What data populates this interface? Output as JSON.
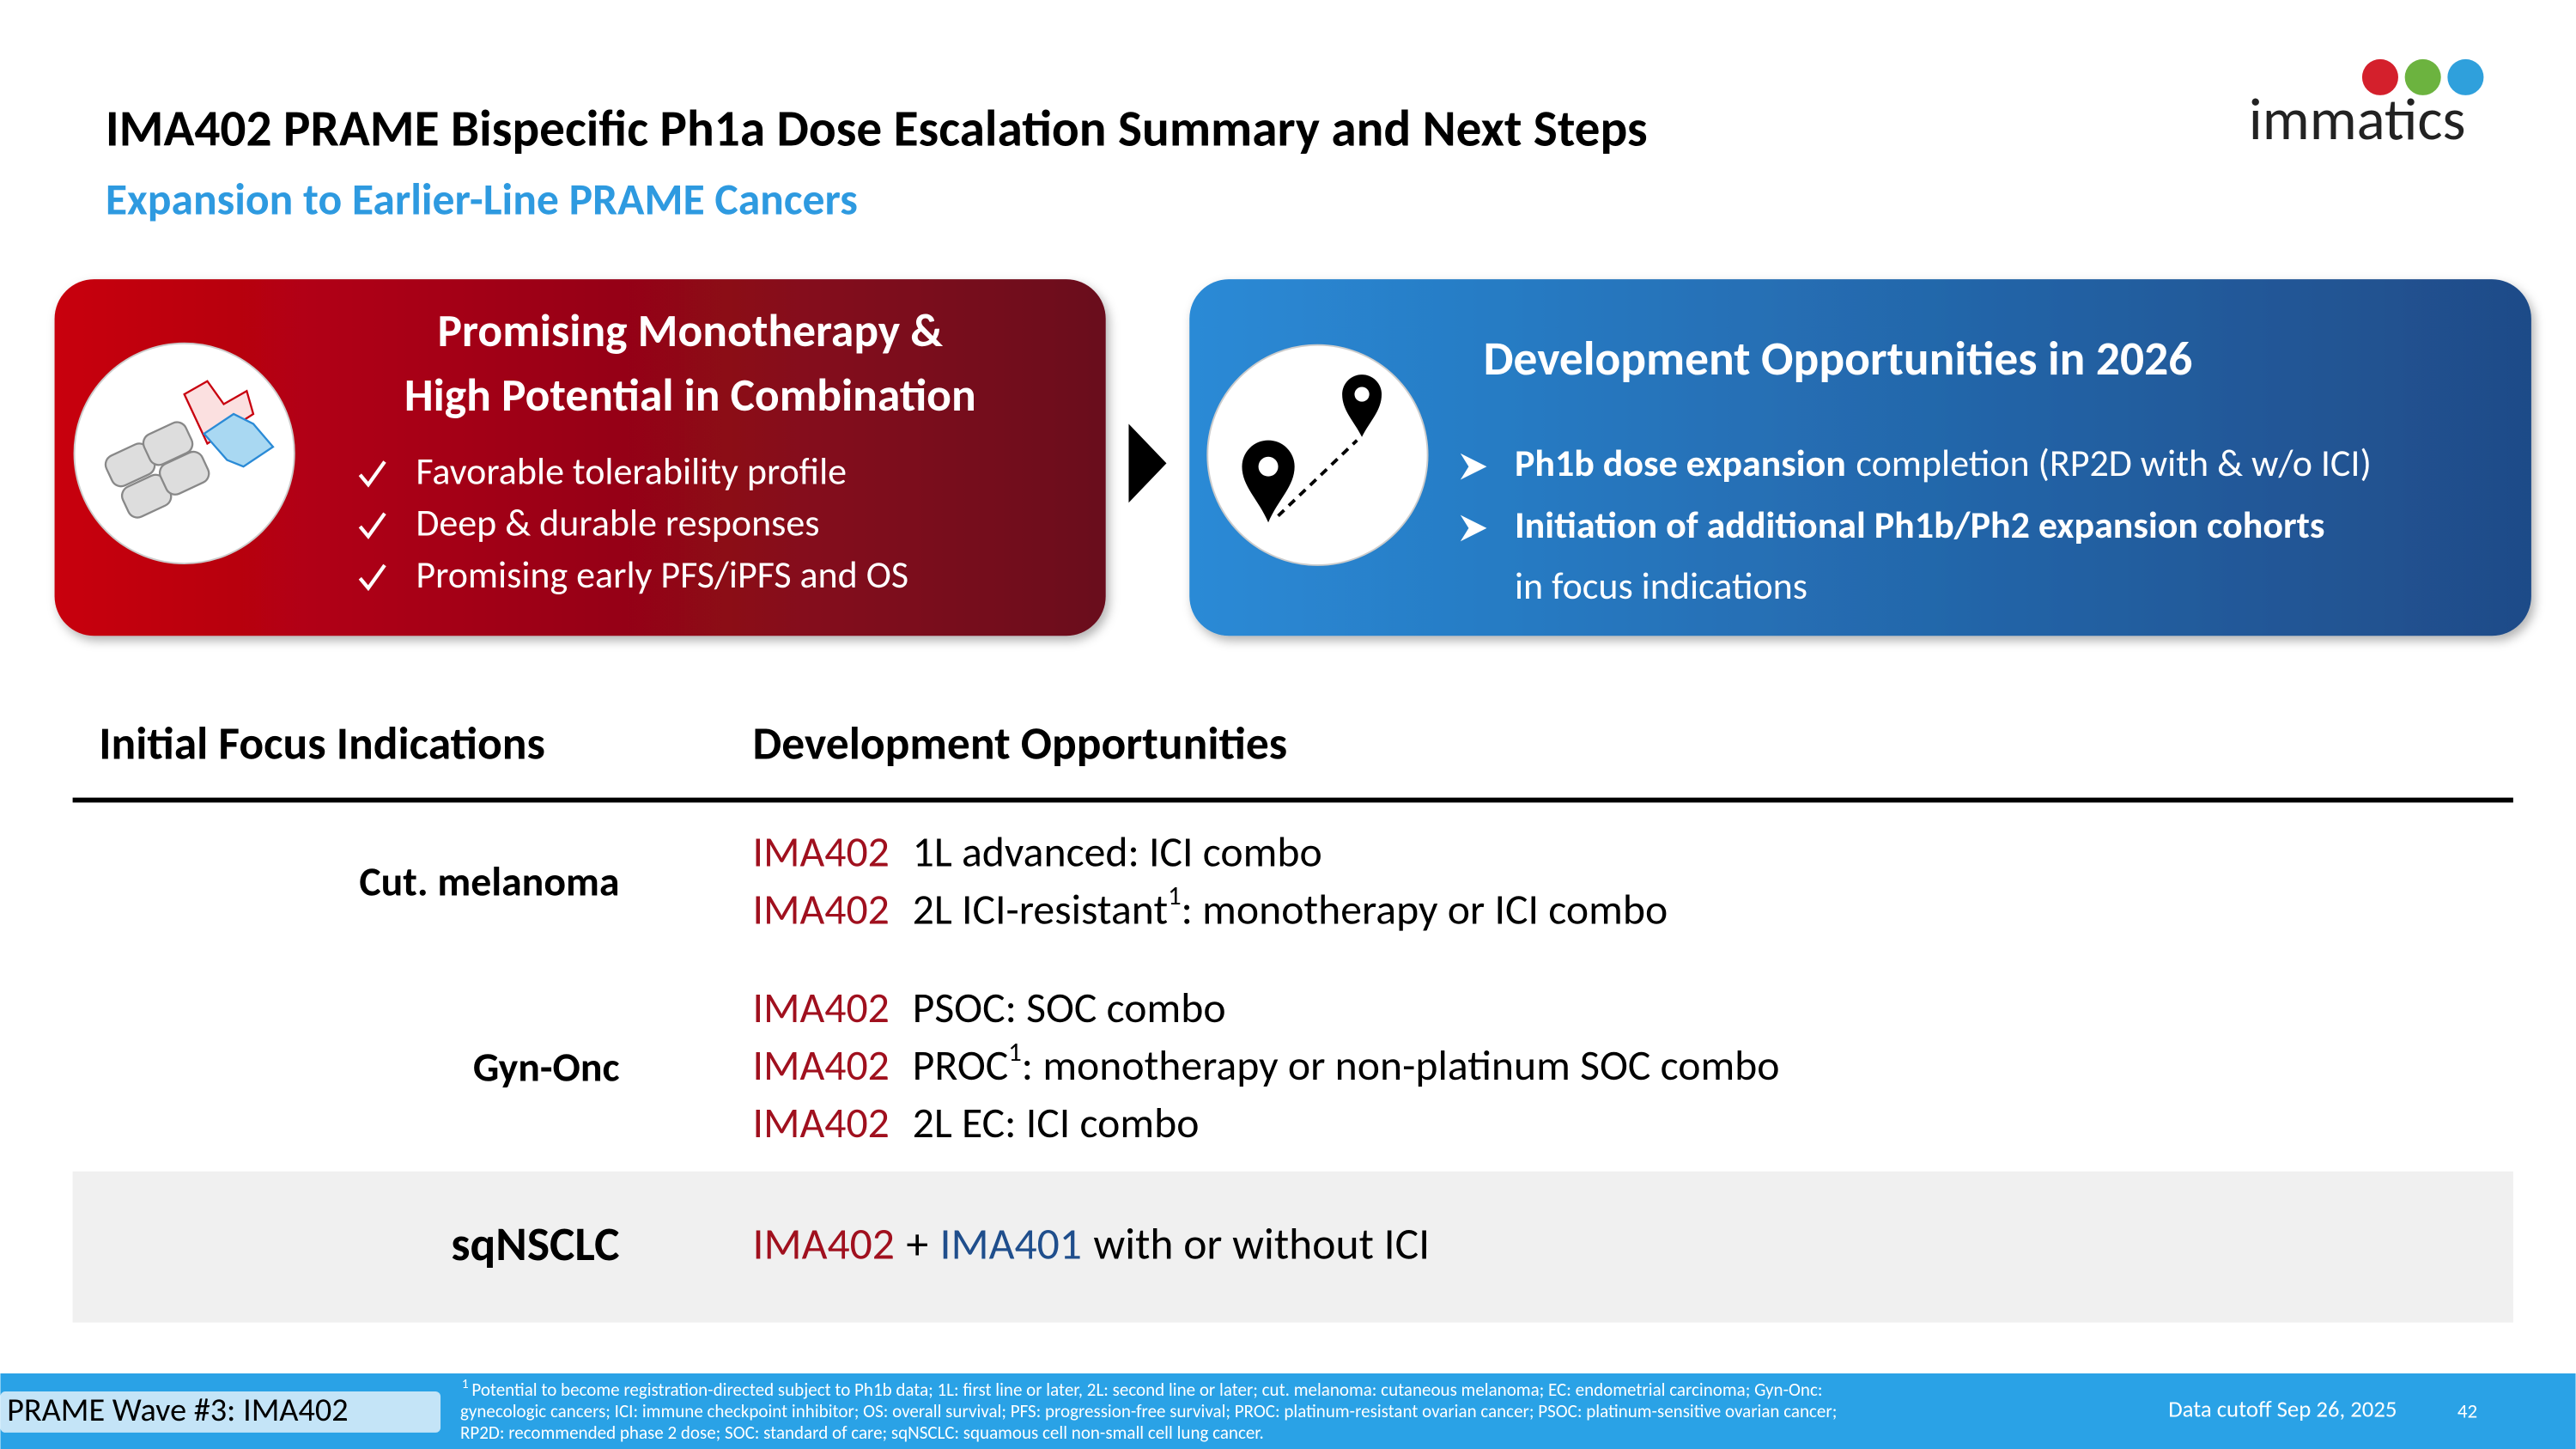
{
  "header": {
    "title": "IMA402 PRAME Bispecific Ph1a Dose Escalation Summary and Next Steps",
    "subtitle": "Expansion to Earlier-Line PRAME Cancers",
    "logo": "immatics"
  },
  "left_panel": {
    "title_lines": [
      "Promising Monotherapy &",
      "High Potential in Combination"
    ],
    "bullets": [
      "Favorable tolerability profile",
      "Deep & durable responses",
      "Promising early PFS/iPFS and OS"
    ]
  },
  "right_panel": {
    "title": "Development Opportunities in 2026",
    "bullets": [
      {
        "bold": "Ph1b dose expansion",
        "text": "completion (RP2D with & w/o ICI)"
      },
      {
        "bold": "Initiation of additional Ph1b/Ph2 expansion cohorts",
        "continuation": "in focus indications"
      }
    ]
  },
  "table": {
    "headers": [
      "Initial Focus Indications",
      "Development Opportunities"
    ],
    "rows": [
      {
        "indication": "Cut. melanoma",
        "items": [
          {
            "drug": "IMA402",
            "text": "1L advanced: ICI combo"
          },
          {
            "drug": "IMA402",
            "text": "2L ICI-resistant",
            "sup": "1",
            "rest": ": monotherapy or ICI combo"
          }
        ]
      },
      {
        "indication": "Gyn-Onc",
        "items": [
          {
            "drug": "IMA402",
            "text": "PSOC: SOC combo"
          },
          {
            "drug": "IMA402",
            "text": "PROC",
            "sup": "1",
            "rest": ": monotherapy or non-platinum SOC combo"
          },
          {
            "drug": "IMA402",
            "text": "2L EC: ICI combo"
          }
        ]
      },
      {
        "indication": "sqNSCLC",
        "items": [
          {
            "drug": "IMA402",
            "join": "+",
            "drug2": "IMA401",
            "text": "with or without ICI"
          }
        ]
      }
    ]
  },
  "footer": {
    "section": "PRAME Wave #3: IMA402",
    "footnote_marker": "1",
    "footnote_lines": [
      "Potential to become registration-directed subject to Ph1b data; 1L: first line or later, 2L: second line or later; cut. melanoma: cutaneous melanoma; EC: endometrial carcinoma; Gyn-Onc:",
      "gynecologic cancers; ICI: immune checkpoint inhibitor; OS: overall survival; PFS: progression-free survival; PROC: platinum-resistant ovarian cancer; PSOC: platinum-sensitive ovarian cancer;",
      "RP2D: recommended phase 2 dose; SOC: standard of care; sqNSCLC: squamous cell non-small cell lung cancer."
    ],
    "cutoff": "Data cutoff Sep 26, 2025",
    "page": "42"
  }
}
